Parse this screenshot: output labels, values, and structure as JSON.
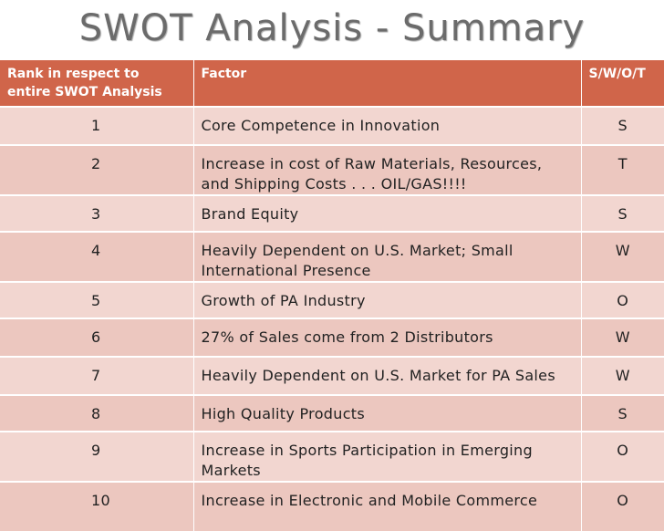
{
  "title": "SWOT Analysis - Summary",
  "table": {
    "headers": {
      "rank": "Rank in respect to entire SWOT Analysis",
      "factor": "Factor",
      "swot": "S/W/O/T"
    },
    "rows": [
      {
        "rank": "1",
        "factor": "Core Competence in Innovation",
        "swot": "S"
      },
      {
        "rank": "2",
        "factor": "Increase in cost of Raw Materials, Resources, and Shipping Costs . . . OIL/GAS!!!!",
        "swot": "T"
      },
      {
        "rank": "3",
        "factor": "Brand Equity",
        "swot": "S"
      },
      {
        "rank": "4",
        "factor": "Heavily Dependent on U.S. Market; Small International Presence",
        "swot": "W"
      },
      {
        "rank": "5",
        "factor": "Growth of PA Industry",
        "swot": "O"
      },
      {
        "rank": "6",
        "factor": "27% of Sales come from 2 Distributors",
        "swot": "W"
      },
      {
        "rank": "7",
        "factor": "Heavily Dependent on U.S. Market for PA Sales",
        "swot": "W"
      },
      {
        "rank": "8",
        "factor": "High Quality Products",
        "swot": "S"
      },
      {
        "rank": "9",
        "factor": "Increase in Sports Participation in Emerging Markets",
        "swot": "O"
      },
      {
        "rank": "10",
        "factor": "Increase in Electronic and Mobile Commerce",
        "swot": "O"
      }
    ]
  }
}
